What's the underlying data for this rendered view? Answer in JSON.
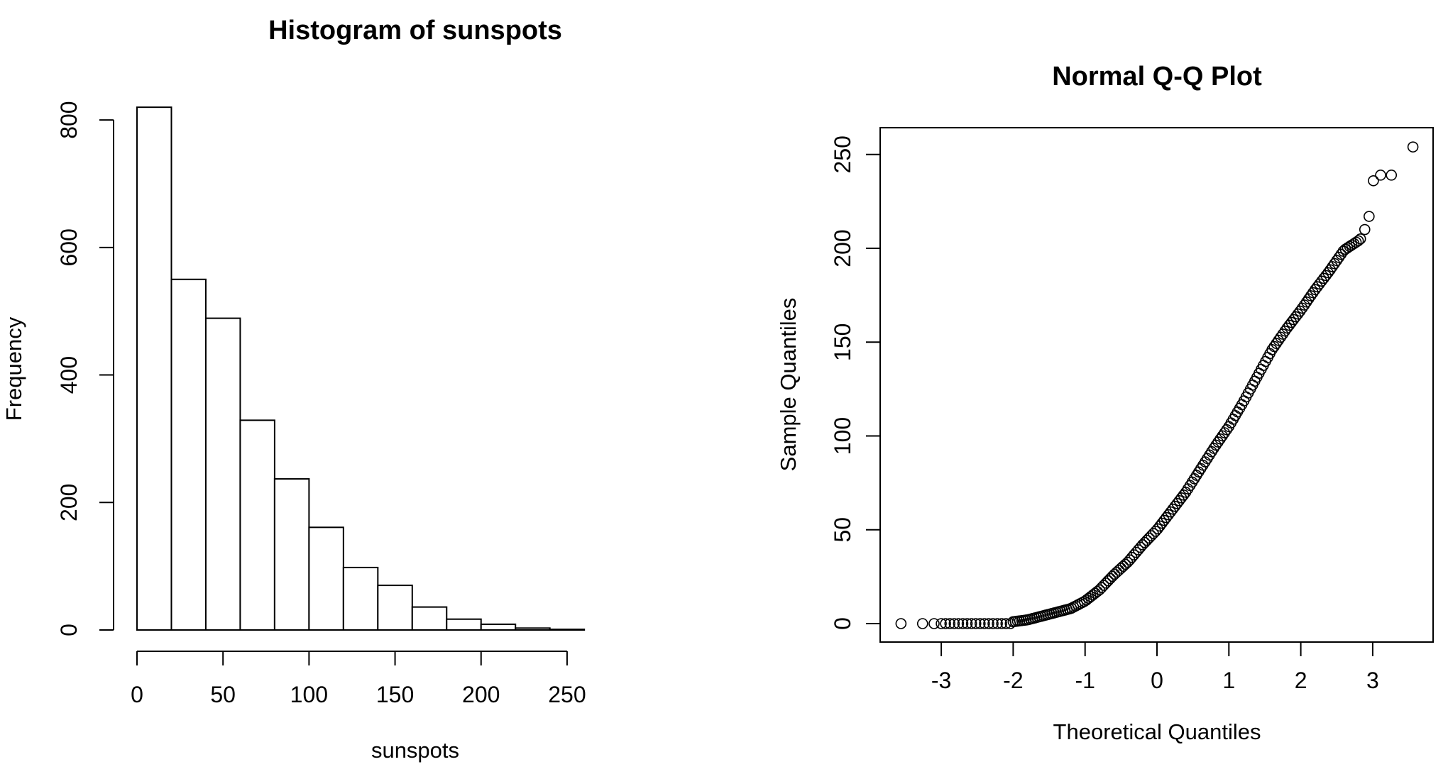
{
  "chart_data": [
    {
      "type": "bar",
      "title": "Histogram of sunspots",
      "xlabel": "sunspots",
      "ylabel": "Frequency",
      "bins": [
        {
          "from": 0,
          "to": 20,
          "count": 820
        },
        {
          "from": 20,
          "to": 40,
          "count": 550
        },
        {
          "from": 40,
          "to": 60,
          "count": 489
        },
        {
          "from": 60,
          "to": 80,
          "count": 329
        },
        {
          "from": 80,
          "to": 100,
          "count": 237
        },
        {
          "from": 100,
          "to": 120,
          "count": 161
        },
        {
          "from": 120,
          "to": 140,
          "count": 98
        },
        {
          "from": 140,
          "to": 160,
          "count": 70
        },
        {
          "from": 160,
          "to": 180,
          "count": 36
        },
        {
          "from": 180,
          "to": 200,
          "count": 17
        },
        {
          "from": 200,
          "to": 220,
          "count": 9
        },
        {
          "from": 220,
          "to": 240,
          "count": 3
        },
        {
          "from": 240,
          "to": 260,
          "count": 1
        }
      ],
      "xticks": [
        "0",
        "50",
        "100",
        "150",
        "200",
        "250"
      ],
      "yticks": [
        "0",
        "200",
        "400",
        "600",
        "800"
      ],
      "xlim": [
        0,
        260
      ],
      "ylim": [
        0,
        820
      ],
      "grid": false
    },
    {
      "type": "scatter",
      "title": "Normal Q-Q Plot",
      "xlabel": "Theoretical Quantiles",
      "ylabel": "Sample Quantiles",
      "x_anchors": [
        -3.56,
        -3.26,
        -3.1,
        -2.5,
        -2.0,
        -1.8,
        -1.5,
        -1.2,
        -1.0,
        -0.8,
        -0.6,
        -0.4,
        -0.2,
        0.0,
        0.2,
        0.4,
        0.6,
        0.8,
        1.0,
        1.2,
        1.4,
        1.6,
        1.8,
        2.0,
        2.2,
        2.4,
        2.6,
        2.8
      ],
      "y_anchors": [
        0,
        0,
        0,
        0,
        1,
        2,
        5,
        8,
        12,
        18,
        26,
        33,
        42,
        50,
        60,
        70,
        82,
        94,
        105,
        118,
        132,
        146,
        157,
        167,
        178,
        188,
        199,
        204
      ],
      "lower_tail": {
        "x_from": -3.0,
        "x_to": -2.0,
        "y": 0
      },
      "outliers": [
        {
          "x": 2.83,
          "y": 205
        },
        {
          "x": 2.89,
          "y": 210
        },
        {
          "x": 2.95,
          "y": 217
        },
        {
          "x": 3.01,
          "y": 236
        },
        {
          "x": 3.11,
          "y": 239
        },
        {
          "x": 3.26,
          "y": 239
        },
        {
          "x": 3.56,
          "y": 254
        }
      ],
      "xticks": [
        "-3",
        "-2",
        "-1",
        "0",
        "1",
        "2",
        "3"
      ],
      "yticks": [
        "0",
        "50",
        "100",
        "150",
        "200",
        "250"
      ],
      "xlim": [
        -3.8,
        3.8
      ],
      "ylim": [
        -10,
        264
      ],
      "grid": false
    }
  ]
}
